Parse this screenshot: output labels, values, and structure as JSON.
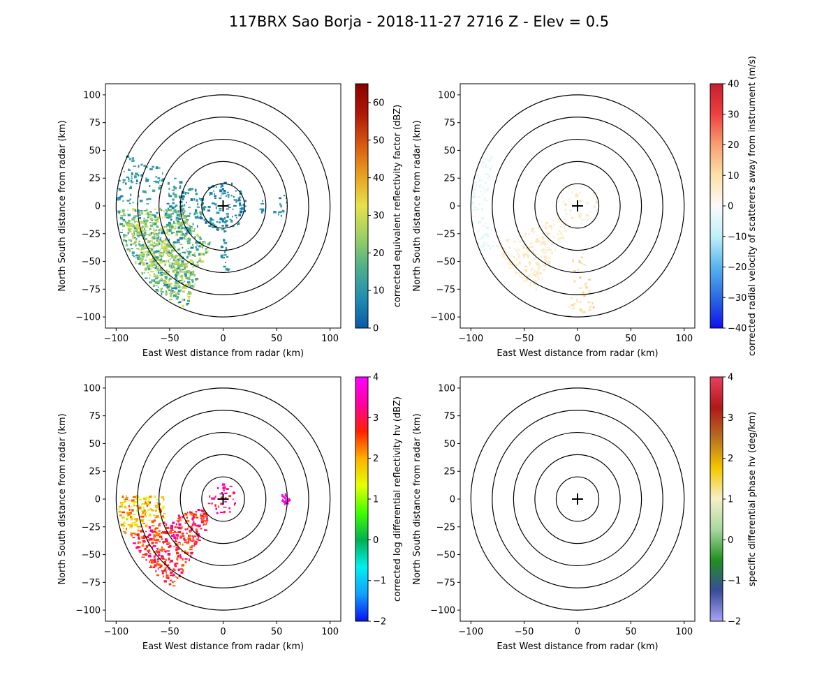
{
  "figure": {
    "title": "117BRX Sao Borja - 2018-11-27 2716 Z -  Elev = 0.5"
  },
  "colors": {
    "ring": "#000000",
    "background": "#ffffff"
  },
  "chart_data": [
    {
      "type": "heatmap",
      "panel": "reflectivity",
      "xlabel": "East West distance from radar (km)",
      "ylabel": "North South distance from radar (km)",
      "xlim": [
        -110,
        110
      ],
      "ylim": [
        -110,
        110
      ],
      "xticks": [
        -100,
        -50,
        0,
        50,
        100
      ],
      "yticks": [
        -100,
        -75,
        -50,
        -25,
        0,
        25,
        50,
        75,
        100
      ],
      "range_rings_km": [
        20,
        40,
        60,
        80,
        100
      ],
      "colorbar": {
        "label": "corrected equivalent reflectivity factor (dBZ)",
        "vmin": 0,
        "vmax": 65,
        "ticks": [
          0,
          10,
          20,
          30,
          40,
          50,
          60
        ],
        "colors": [
          "#0a58a8",
          "#1f8fb0",
          "#4fb08a",
          "#9ed062",
          "#e6e24a",
          "#e8a020",
          "#d85a10",
          "#b01808",
          "#8a0000"
        ]
      },
      "echoes": [
        {
          "sector_deg": [
            200,
            268
          ],
          "range_km": [
            35,
            98
          ],
          "values": [
            5,
            32
          ],
          "density": 0.78
        },
        {
          "sector_deg": [
            205,
            262
          ],
          "range_km": [
            60,
            92
          ],
          "values": [
            18,
            33
          ],
          "density": 0.55
        },
        {
          "sector_deg": [
            0,
            360
          ],
          "range_km": [
            0,
            22
          ],
          "values": [
            2,
            12
          ],
          "density": 0.45
        },
        {
          "sector_deg": [
            230,
            300
          ],
          "range_km": [
            20,
            55
          ],
          "values": [
            4,
            18
          ],
          "density": 0.4
        },
        {
          "sector_deg": [
            270,
            300
          ],
          "range_km": [
            60,
            100
          ],
          "values": [
            6,
            16
          ],
          "density": 0.3
        },
        {
          "sector_deg": [
            80,
            100
          ],
          "range_km": [
            35,
            60
          ],
          "values": [
            4,
            14
          ],
          "density": 0.3
        },
        {
          "sector_deg": [
            175,
            182
          ],
          "range_km": [
            20,
            60
          ],
          "values": [
            4,
            14
          ],
          "density": 0.35
        }
      ]
    },
    {
      "type": "heatmap",
      "panel": "velocity",
      "xlabel": "East West distance from radar (km)",
      "ylabel": "North South distance from radar (km)",
      "xlim": [
        -110,
        110
      ],
      "ylim": [
        -110,
        110
      ],
      "xticks": [
        -100,
        -50,
        0,
        50,
        100
      ],
      "yticks": [
        -100,
        -75,
        -50,
        -25,
        0,
        25,
        50,
        75,
        100
      ],
      "range_rings_km": [
        20,
        40,
        60,
        80,
        100
      ],
      "colorbar": {
        "label": "corrected radial velocity of scatterers away from instrument (m/s)",
        "vmin": -40,
        "vmax": 40,
        "ticks": [
          -40,
          -30,
          -20,
          -10,
          0,
          10,
          20,
          30,
          40
        ],
        "colors": [
          "#1010ee",
          "#2a6be0",
          "#58b4ef",
          "#bff0f8",
          "#fbfbfa",
          "#fde0a8",
          "#f8a070",
          "#ee4040",
          "#c81e30"
        ]
      },
      "echoes": [
        {
          "sector_deg": [
            205,
            245
          ],
          "range_km": [
            20,
            85
          ],
          "values": [
            3,
            9
          ],
          "density": 0.55
        },
        {
          "sector_deg": [
            245,
            300
          ],
          "range_km": [
            85,
            100
          ],
          "values": [
            -6,
            -2
          ],
          "density": 0.4
        },
        {
          "sector_deg": [
            170,
            185
          ],
          "range_km": [
            40,
            100
          ],
          "values": [
            6,
            14
          ],
          "density": 0.25
        },
        {
          "sector_deg": [
            0,
            360
          ],
          "range_km": [
            0,
            20
          ],
          "values": [
            -4,
            10
          ],
          "density": 0.25
        }
      ]
    },
    {
      "type": "heatmap",
      "panel": "differential_reflectivity",
      "xlabel": "East West distance from radar (km)",
      "ylabel": "North South distance from radar (km)",
      "xlim": [
        -110,
        110
      ],
      "ylim": [
        -110,
        110
      ],
      "xticks": [
        -100,
        -50,
        0,
        50,
        100
      ],
      "yticks": [
        -100,
        -75,
        -50,
        -25,
        0,
        25,
        50,
        75,
        100
      ],
      "range_rings_km": [
        20,
        40,
        60,
        80,
        100
      ],
      "colorbar": {
        "label": "corrected log differential reflectivity hv (dBZ)",
        "vmin": -2,
        "vmax": 4,
        "ticks": [
          -2,
          -1,
          0,
          1,
          2,
          3,
          4
        ],
        "colors": [
          "#0a10f0",
          "#10a0ff",
          "#00f0f0",
          "#00b050",
          "#40ff00",
          "#e6ff00",
          "#ffb000",
          "#ff2000",
          "#ff00a0",
          "#ff00ff"
        ]
      },
      "echoes": [
        {
          "sector_deg": [
            210,
            250
          ],
          "range_km": [
            20,
            92
          ],
          "values": [
            2.2,
            3.4
          ],
          "density": 0.8
        },
        {
          "sector_deg": [
            250,
            272
          ],
          "range_km": [
            55,
            98
          ],
          "values": [
            1.0,
            2.6
          ],
          "density": 0.7
        },
        {
          "sector_deg": [
            0,
            360
          ],
          "range_km": [
            0,
            14
          ],
          "values": [
            2.5,
            4.0
          ],
          "density": 0.35
        },
        {
          "sector_deg": [
            85,
            95
          ],
          "range_km": [
            55,
            62
          ],
          "values": [
            3.6,
            4.0
          ],
          "density": 0.7
        }
      ]
    },
    {
      "type": "heatmap",
      "panel": "specific_differential_phase",
      "xlabel": "East West distance from radar (km)",
      "ylabel": "North South distance from radar (km)",
      "xlim": [
        -110,
        110
      ],
      "ylim": [
        -110,
        110
      ],
      "xticks": [
        -100,
        -50,
        0,
        50,
        100
      ],
      "yticks": [
        -100,
        -75,
        -50,
        -25,
        0,
        25,
        50,
        75,
        100
      ],
      "range_rings_km": [
        20,
        40,
        60,
        80,
        100
      ],
      "colorbar": {
        "label": "specific differential phase hv (deg/km)",
        "vmin": -2,
        "vmax": 4,
        "ticks": [
          -2,
          -1,
          0,
          1,
          2,
          3,
          4
        ],
        "colors": [
          "#a6a6f5",
          "#3a4a9a",
          "#209020",
          "#a8d8a0",
          "#f4f0c8",
          "#f6c800",
          "#b87020",
          "#b01818",
          "#e84060"
        ]
      },
      "echoes": []
    }
  ]
}
